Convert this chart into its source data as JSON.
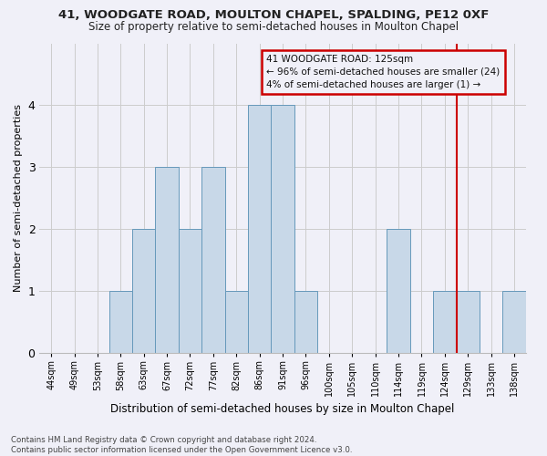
{
  "title1": "41, WOODGATE ROAD, MOULTON CHAPEL, SPALDING, PE12 0XF",
  "title2": "Size of property relative to semi-detached houses in Moulton Chapel",
  "xlabel": "Distribution of semi-detached houses by size in Moulton Chapel",
  "ylabel": "Number of semi-detached properties",
  "footnote": "Contains HM Land Registry data © Crown copyright and database right 2024.\nContains public sector information licensed under the Open Government Licence v3.0.",
  "bin_labels": [
    "44sqm",
    "49sqm",
    "53sqm",
    "58sqm",
    "63sqm",
    "67sqm",
    "72sqm",
    "77sqm",
    "82sqm",
    "86sqm",
    "91sqm",
    "96sqm",
    "100sqm",
    "105sqm",
    "110sqm",
    "114sqm",
    "119sqm",
    "124sqm",
    "129sqm",
    "133sqm",
    "138sqm"
  ],
  "bar_heights": [
    0,
    0,
    0,
    1,
    2,
    3,
    2,
    3,
    1,
    4,
    4,
    1,
    0,
    0,
    0,
    2,
    0,
    1,
    1,
    0,
    1
  ],
  "bar_color": "#c8d8e8",
  "bar_edge_color": "#6699bb",
  "grid_color": "#cccccc",
  "vline_index": 17.5,
  "vline_color": "#cc0000",
  "annotation_line1": "41 WOODGATE ROAD: 125sqm",
  "annotation_line2": "← 96% of semi-detached houses are smaller (24)",
  "annotation_line3": "4% of semi-detached houses are larger (1) →",
  "ylim": [
    0,
    5
  ],
  "yticks": [
    0,
    1,
    2,
    3,
    4
  ],
  "background_color": "#f0f0f8"
}
